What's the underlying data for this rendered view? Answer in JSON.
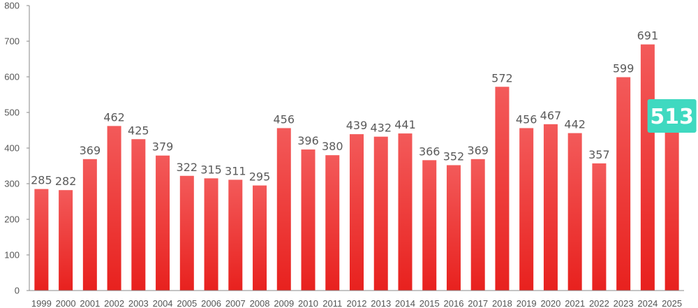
{
  "chart_data": {
    "type": "bar",
    "categories": [
      "1999",
      "2000",
      "2001",
      "2002",
      "2003",
      "2004",
      "2005",
      "2006",
      "2007",
      "2008",
      "2009",
      "2010",
      "2011",
      "2012",
      "2013",
      "2014",
      "2015",
      "2016",
      "2017",
      "2018",
      "2019",
      "2020",
      "2021",
      "2022",
      "2023",
      "2024",
      "2025"
    ],
    "values": [
      285,
      282,
      369,
      462,
      425,
      379,
      322,
      315,
      311,
      295,
      456,
      396,
      380,
      439,
      432,
      441,
      366,
      352,
      369,
      572,
      456,
      467,
      442,
      357,
      599,
      691,
      513
    ],
    "ylim": [
      0,
      800
    ],
    "yticks": [
      0,
      100,
      200,
      300,
      400,
      500,
      600,
      700,
      800
    ],
    "grid": false,
    "highlight": {
      "category": "2025",
      "label": "513"
    },
    "colors": {
      "bar_top": "#f35a5a",
      "bar_bottom": "#e8211e",
      "highlight_bg": "#3fd9c0",
      "axis": "#888888",
      "label_text": "#5a5a5a"
    }
  }
}
